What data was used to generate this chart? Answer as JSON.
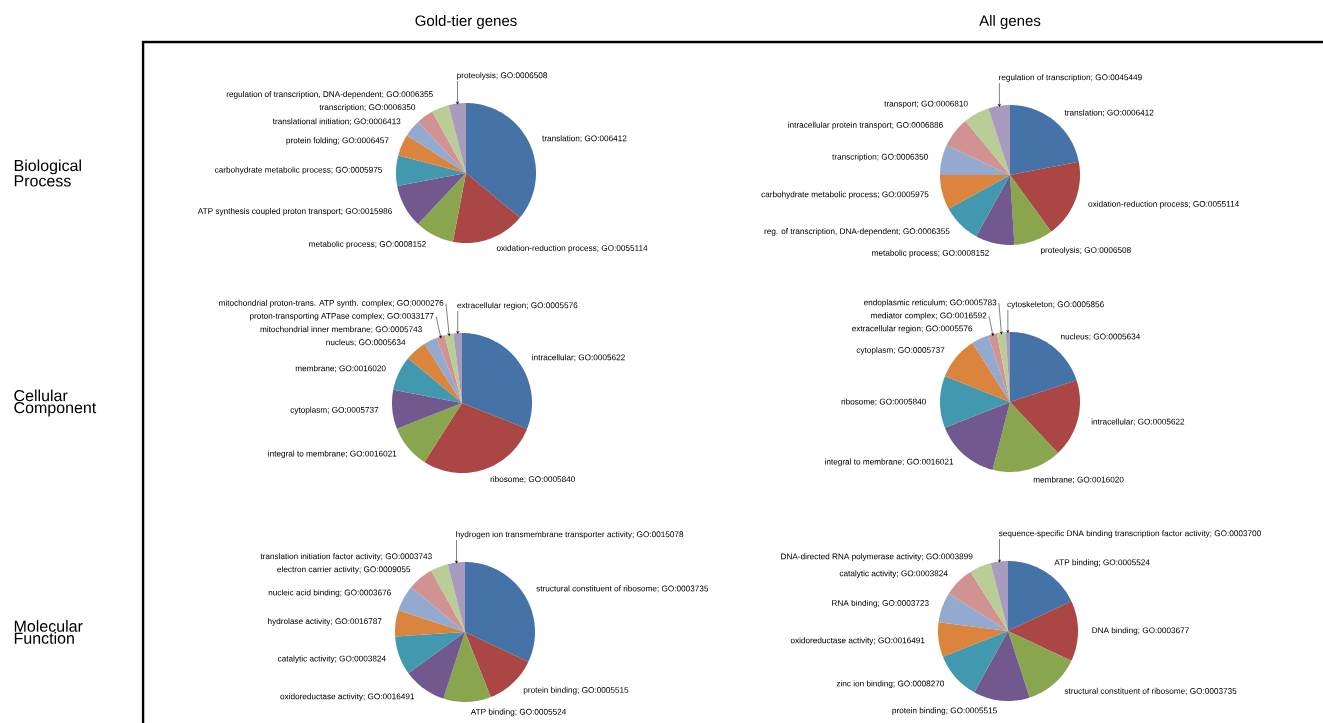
{
  "chart_data": [
    {
      "type": "pie",
      "title": "Gold-tier genes",
      "ylabel": "Biological Process",
      "categories": [
        "translation; GO:006412",
        "oxidation-reduction process; GO:0055114",
        "metabolic process; GO:0008152",
        "ATP synthesis coupled proton transport; GO:0015986",
        "carbohydrate metabolic process; GO:0005975",
        "protein folding; GO:0006457",
        "translational initiation; GO:0006413",
        "transcription; GO:0006350",
        "regulation of transcription, DNA-dependent; GO:0006355",
        "proteolysis; GO:0006508"
      ],
      "values": [
        36,
        17,
        9,
        10,
        7,
        5,
        4,
        4,
        4,
        4
      ],
      "colors": [
        "#4572a7",
        "#aa4643",
        "#89a54e",
        "#71588f",
        "#4198af",
        "#db843d",
        "#93a9cf",
        "#d19392",
        "#b9cd96",
        "#a99bbd"
      ]
    },
    {
      "type": "pie",
      "title": "All genes",
      "categories": [
        "translation; GO:0006412",
        "oxidation-reduction process; GO:0055114",
        "proteolysis; GO:0006508",
        "metabolic process; GO:0008152",
        "reg. of transcription, DNA-dependent; GO:0006355",
        "carbohydrate metabolic process; GO:0005975",
        "transcription; GO:0006350",
        "intracellular protein transport; GO:0006886",
        "transport; GO:0006810",
        "regulation of transcription; GO:0045449"
      ],
      "values": [
        22,
        18,
        9,
        9,
        9,
        8,
        7,
        7,
        6,
        5
      ],
      "colors": [
        "#4572a7",
        "#aa4643",
        "#89a54e",
        "#71588f",
        "#4198af",
        "#db843d",
        "#93a9cf",
        "#d19392",
        "#b9cd96",
        "#a99bbd"
      ]
    },
    {
      "type": "pie",
      "ylabel": "Cellular Component",
      "categories": [
        "intracellular; GO:0005622",
        "ribosome; GO:0005840",
        "integral to membrane; GO:0016021",
        "cytoplasm; GO:0005737",
        "membrane; GO:0016020",
        "nucleus; GO:0005634",
        "mitochondrial inner membrane; GO:0005743",
        "proton-transporting ATPase complex; GO:0033177",
        "mitochondrial proton-trans. ATP synth. complex; GO:0000276",
        "extracellular region; GO:0005576"
      ],
      "values": [
        31,
        28,
        10,
        9,
        8,
        5,
        3,
        2,
        2,
        2
      ],
      "colors": [
        "#4572a7",
        "#aa4643",
        "#89a54e",
        "#71588f",
        "#4198af",
        "#db843d",
        "#93a9cf",
        "#d19392",
        "#b9cd96",
        "#a99bbd"
      ]
    },
    {
      "type": "pie",
      "categories": [
        "nucleus; GO:0005634",
        "intracellular; GO:0005622",
        "membrane; GO:0016020",
        "integral to membrane; GO:0016021",
        "ribosome; GO:0005840",
        "cytoplasm; GO:0005737",
        "extracellular region; GO:0005576",
        "mediator complex; GO:0016592",
        "endoplasmic reticulum; GO:0005783",
        "cytoskeleton; GO:0005856"
      ],
      "values": [
        20,
        18,
        16,
        15,
        12,
        10,
        4,
        2,
        2,
        1
      ],
      "colors": [
        "#4572a7",
        "#aa4643",
        "#89a54e",
        "#71588f",
        "#4198af",
        "#db843d",
        "#93a9cf",
        "#d19392",
        "#b9cd96",
        "#a99bbd"
      ]
    },
    {
      "type": "pie",
      "ylabel": "Molecular Function",
      "categories": [
        "structural constituent of ribosome; GO:0003735",
        "protein binding; GO:0005515",
        "ATP binding; GO:0005524",
        "oxidoreductase activity; GO:0016491",
        "catalytic activity; GO:0003824",
        "hydrolase activity; GO:0016787",
        "nucleic acid binding; GO:0003676",
        "electron carrier activity; GO:0009055",
        "translation initiation factor activity; GO:0003743",
        "hydrogen ion transmembrane transporter activity; GO:0015078"
      ],
      "values": [
        32,
        12,
        11,
        10,
        9,
        6,
        6,
        6,
        4,
        4
      ],
      "colors": [
        "#4572a7",
        "#aa4643",
        "#89a54e",
        "#71588f",
        "#4198af",
        "#db843d",
        "#93a9cf",
        "#d19392",
        "#b9cd96",
        "#a99bbd"
      ]
    },
    {
      "type": "pie",
      "categories": [
        "ATP binding; GO:0005524",
        "DNA binding; GO:0003677",
        "structural constituent of ribosome; GO:0003735",
        "protein binding; GO:0005515",
        "zinc ion binding; GO:0008270",
        "oxidoreductase activity; GO:0016491",
        "RNA binding; GO:0003723",
        "catalytic activity; GO:0003824",
        "DNA-directed RNA polymerase activity; GO:0003899",
        "sequence-specific DNA binding transcription factor activity; GO:0003700"
      ],
      "values": [
        18,
        14,
        13,
        13,
        11,
        8,
        7,
        7,
        5,
        4
      ],
      "colors": [
        "#4572a7",
        "#aa4643",
        "#89a54e",
        "#71588f",
        "#4198af",
        "#db843d",
        "#93a9cf",
        "#d19392",
        "#b9cd96",
        "#a99bbd"
      ]
    }
  ]
}
